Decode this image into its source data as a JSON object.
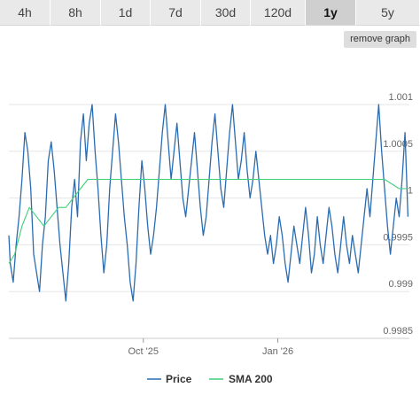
{
  "tabs": [
    "4h",
    "8h",
    "1d",
    "7d",
    "30d",
    "120d",
    "1y",
    "5y"
  ],
  "active_tab": "1y",
  "remove_graph_label": "remove graph",
  "colors": {
    "price": "#2b6cb0",
    "sma": "#3ecf7a",
    "grid": "#e6e6e6",
    "tab_bg": "#e9e9e9",
    "tab_active": "#cfcfcf"
  },
  "chart_data": {
    "type": "line",
    "x_range": [
      "2025-07-01",
      "2026-04-01"
    ],
    "x_ticks": [
      {
        "date": "2025-10-01",
        "label": "Oct '25"
      },
      {
        "date": "2026-01-01",
        "label": "Jan '26"
      }
    ],
    "ylim": [
      0.9985,
      1.001
    ],
    "y_ticks": [
      {
        "value": 0.9985,
        "label": "0.9985"
      },
      {
        "value": 0.999,
        "label": "0.999"
      },
      {
        "value": 0.9995,
        "label": "0.9995"
      },
      {
        "value": 1.0,
        "label": "1"
      },
      {
        "value": 1.0005,
        "label": "1.0005"
      },
      {
        "value": 1.001,
        "label": "1.001"
      }
    ],
    "grid": true,
    "legend_position": "bottom",
    "series": [
      {
        "name": "Price",
        "color": "#2b6cb0",
        "points": [
          [
            "2025-07-01",
            0.9996
          ],
          [
            "2025-07-02",
            0.9993
          ],
          [
            "2025-07-04",
            0.9991
          ],
          [
            "2025-07-06",
            0.9995
          ],
          [
            "2025-07-08",
            0.9998
          ],
          [
            "2025-07-10",
            1.0002
          ],
          [
            "2025-07-12",
            1.0007
          ],
          [
            "2025-07-14",
            1.0005
          ],
          [
            "2025-07-16",
            1.0001
          ],
          [
            "2025-07-18",
            0.9994
          ],
          [
            "2025-07-20",
            0.9992
          ],
          [
            "2025-07-22",
            0.999
          ],
          [
            "2025-07-24",
            0.9995
          ],
          [
            "2025-07-26",
            0.9998
          ],
          [
            "2025-07-28",
            1.0004
          ],
          [
            "2025-07-30",
            1.0006
          ],
          [
            "2025-08-01",
            1.0003
          ],
          [
            "2025-08-03",
            0.9999
          ],
          [
            "2025-08-05",
            0.9995
          ],
          [
            "2025-08-07",
            0.9992
          ],
          [
            "2025-08-09",
            0.9989
          ],
          [
            "2025-08-11",
            0.9993
          ],
          [
            "2025-08-13",
            0.9999
          ],
          [
            "2025-08-15",
            1.0002
          ],
          [
            "2025-08-17",
            0.9998
          ],
          [
            "2025-08-19",
            1.0006
          ],
          [
            "2025-08-21",
            1.0009
          ],
          [
            "2025-08-23",
            1.0004
          ],
          [
            "2025-08-25",
            1.0008
          ],
          [
            "2025-08-27",
            1.001
          ],
          [
            "2025-08-29",
            1.0005
          ],
          [
            "2025-08-31",
            1.0001
          ],
          [
            "2025-09-02",
            0.9996
          ],
          [
            "2025-09-04",
            0.9992
          ],
          [
            "2025-09-06",
            0.9995
          ],
          [
            "2025-09-08",
            1.0001
          ],
          [
            "2025-09-10",
            1.0005
          ],
          [
            "2025-09-12",
            1.0009
          ],
          [
            "2025-09-14",
            1.0006
          ],
          [
            "2025-09-16",
            1.0002
          ],
          [
            "2025-09-18",
            0.9998
          ],
          [
            "2025-09-20",
            0.9995
          ],
          [
            "2025-09-22",
            0.9991
          ],
          [
            "2025-09-24",
            0.9989
          ],
          [
            "2025-09-26",
            0.9993
          ],
          [
            "2025-09-28",
            0.9999
          ],
          [
            "2025-09-30",
            1.0004
          ],
          [
            "2025-10-02",
            1.0001
          ],
          [
            "2025-10-04",
            0.9997
          ],
          [
            "2025-10-06",
            0.9994
          ],
          [
            "2025-10-08",
            0.9996
          ],
          [
            "2025-10-10",
            0.9999
          ],
          [
            "2025-10-12",
            1.0003
          ],
          [
            "2025-10-14",
            1.0007
          ],
          [
            "2025-10-16",
            1.001
          ],
          [
            "2025-10-18",
            1.0006
          ],
          [
            "2025-10-20",
            1.0002
          ],
          [
            "2025-10-22",
            1.0005
          ],
          [
            "2025-10-24",
            1.0008
          ],
          [
            "2025-10-26",
            1.0004
          ],
          [
            "2025-10-28",
            1.0
          ],
          [
            "2025-10-30",
            0.9998
          ],
          [
            "2025-11-01",
            1.0001
          ],
          [
            "2025-11-03",
            1.0004
          ],
          [
            "2025-11-05",
            1.0007
          ],
          [
            "2025-11-07",
            1.0003
          ],
          [
            "2025-11-09",
            0.9999
          ],
          [
            "2025-11-11",
            0.9996
          ],
          [
            "2025-11-13",
            0.9998
          ],
          [
            "2025-11-15",
            1.0002
          ],
          [
            "2025-11-17",
            1.0006
          ],
          [
            "2025-11-19",
            1.0009
          ],
          [
            "2025-11-21",
            1.0005
          ],
          [
            "2025-11-23",
            1.0001
          ],
          [
            "2025-11-25",
            0.9999
          ],
          [
            "2025-11-27",
            1.0003
          ],
          [
            "2025-11-29",
            1.0007
          ],
          [
            "2025-12-01",
            1.001
          ],
          [
            "2025-12-03",
            1.0006
          ],
          [
            "2025-12-05",
            1.0002
          ],
          [
            "2025-12-07",
            1.0004
          ],
          [
            "2025-12-09",
            1.0007
          ],
          [
            "2025-12-11",
            1.0003
          ],
          [
            "2025-12-13",
            1.0
          ],
          [
            "2025-12-15",
            1.0002
          ],
          [
            "2025-12-17",
            1.0005
          ],
          [
            "2025-12-19",
            1.0002
          ],
          [
            "2025-12-21",
            0.9999
          ],
          [
            "2025-12-23",
            0.9996
          ],
          [
            "2025-12-25",
            0.9994
          ],
          [
            "2025-12-27",
            0.9996
          ],
          [
            "2025-12-29",
            0.9993
          ],
          [
            "2025-12-31",
            0.9995
          ],
          [
            "2026-01-02",
            0.9998
          ],
          [
            "2026-01-04",
            0.9996
          ],
          [
            "2026-01-06",
            0.9993
          ],
          [
            "2026-01-08",
            0.9991
          ],
          [
            "2026-01-10",
            0.9994
          ],
          [
            "2026-01-12",
            0.9997
          ],
          [
            "2026-01-14",
            0.9995
          ],
          [
            "2026-01-16",
            0.9993
          ],
          [
            "2026-01-18",
            0.9996
          ],
          [
            "2026-01-20",
            0.9999
          ],
          [
            "2026-01-22",
            0.9996
          ],
          [
            "2026-01-24",
            0.9992
          ],
          [
            "2026-01-26",
            0.9994
          ],
          [
            "2026-01-28",
            0.9998
          ],
          [
            "2026-01-30",
            0.9995
          ],
          [
            "2026-02-01",
            0.9993
          ],
          [
            "2026-02-03",
            0.9996
          ],
          [
            "2026-02-05",
            0.9999
          ],
          [
            "2026-02-07",
            0.9997
          ],
          [
            "2026-02-09",
            0.9994
          ],
          [
            "2026-02-11",
            0.9992
          ],
          [
            "2026-02-13",
            0.9995
          ],
          [
            "2026-02-15",
            0.9998
          ],
          [
            "2026-02-17",
            0.9995
          ],
          [
            "2026-02-19",
            0.9993
          ],
          [
            "2026-02-21",
            0.9996
          ],
          [
            "2026-02-23",
            0.9994
          ],
          [
            "2026-02-25",
            0.9992
          ],
          [
            "2026-02-27",
            0.9995
          ],
          [
            "2026-03-01",
            0.9998
          ],
          [
            "2026-03-03",
            1.0001
          ],
          [
            "2026-03-05",
            0.9998
          ],
          [
            "2026-03-07",
            1.0002
          ],
          [
            "2026-03-09",
            1.0006
          ],
          [
            "2026-03-11",
            1.001
          ],
          [
            "2026-03-13",
            1.0005
          ],
          [
            "2026-03-15",
            1.0001
          ],
          [
            "2026-03-17",
            0.9997
          ],
          [
            "2026-03-19",
            0.9994
          ],
          [
            "2026-03-21",
            0.9997
          ],
          [
            "2026-03-23",
            1.0
          ],
          [
            "2026-03-25",
            0.9998
          ],
          [
            "2026-03-27",
            1.0002
          ],
          [
            "2026-03-29",
            1.0007
          ],
          [
            "2026-03-31",
            0.9998
          ]
        ]
      },
      {
        "name": "SMA 200",
        "color": "#3ecf7a",
        "points": [
          [
            "2025-07-01",
            0.9993
          ],
          [
            "2025-07-05",
            0.9994
          ],
          [
            "2025-07-10",
            0.9997
          ],
          [
            "2025-07-15",
            0.9999
          ],
          [
            "2025-07-20",
            0.9998
          ],
          [
            "2025-07-25",
            0.9997
          ],
          [
            "2025-07-30",
            0.9998
          ],
          [
            "2025-08-04",
            0.9999
          ],
          [
            "2025-08-09",
            0.9999
          ],
          [
            "2025-08-14",
            1.0
          ],
          [
            "2025-08-19",
            1.0001
          ],
          [
            "2025-08-24",
            1.0002
          ],
          [
            "2025-08-29",
            1.0002
          ],
          [
            "2025-09-05",
            1.0002
          ],
          [
            "2025-09-15",
            1.0002
          ],
          [
            "2025-09-25",
            1.0002
          ],
          [
            "2025-10-05",
            1.0002
          ],
          [
            "2025-10-15",
            1.0002
          ],
          [
            "2025-10-25",
            1.0002
          ],
          [
            "2025-11-05",
            1.0002
          ],
          [
            "2025-11-15",
            1.0002
          ],
          [
            "2025-11-25",
            1.0002
          ],
          [
            "2025-12-05",
            1.0002
          ],
          [
            "2025-12-15",
            1.0002
          ],
          [
            "2025-12-25",
            1.0002
          ],
          [
            "2026-01-05",
            1.0002
          ],
          [
            "2026-01-15",
            1.0002
          ],
          [
            "2026-01-25",
            1.0002
          ],
          [
            "2026-02-05",
            1.0002
          ],
          [
            "2026-02-15",
            1.0002
          ],
          [
            "2026-02-25",
            1.0002
          ],
          [
            "2026-03-05",
            1.0002
          ],
          [
            "2026-03-15",
            1.0002
          ],
          [
            "2026-03-25",
            1.0001
          ],
          [
            "2026-03-31",
            1.0001
          ]
        ]
      }
    ]
  }
}
